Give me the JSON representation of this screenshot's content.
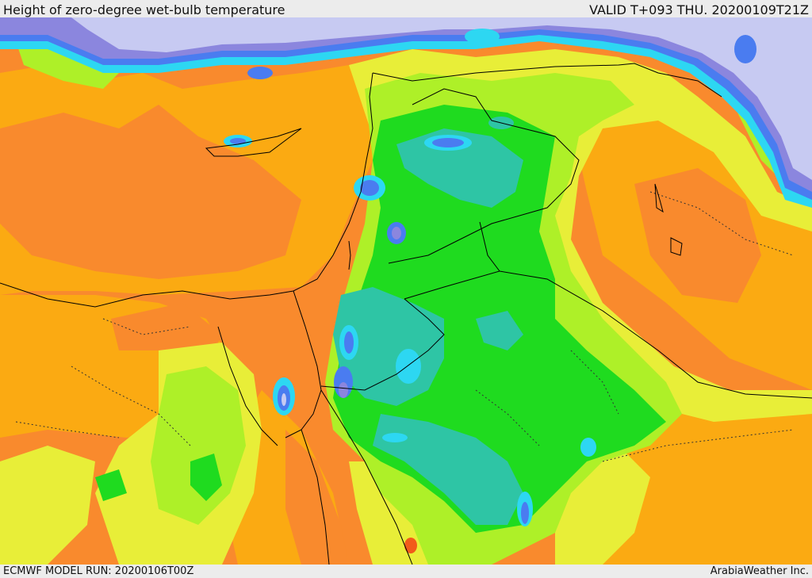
{
  "header": {
    "title": "Height of zero-degree wet-bulb temperature",
    "valid": "VALID T+093 THU. 20200109T21Z"
  },
  "footer": {
    "model_run": "ECMWF MODEL RUN: 20200106T00Z",
    "credit": "ArabiaWeather Inc."
  },
  "colors": {
    "deep_orange": "#f98a2d",
    "orange": "#fbaa12",
    "yellow": "#e8ee38",
    "lime": "#aef028",
    "green": "#1fdb1f",
    "teal": "#2ec5a5",
    "cyan": "#2dd7f2",
    "blue": "#4a7cf0",
    "purple": "#8b86de",
    "lavender": "#c7caf2",
    "red": "#f25b1a",
    "border": "#000000"
  }
}
